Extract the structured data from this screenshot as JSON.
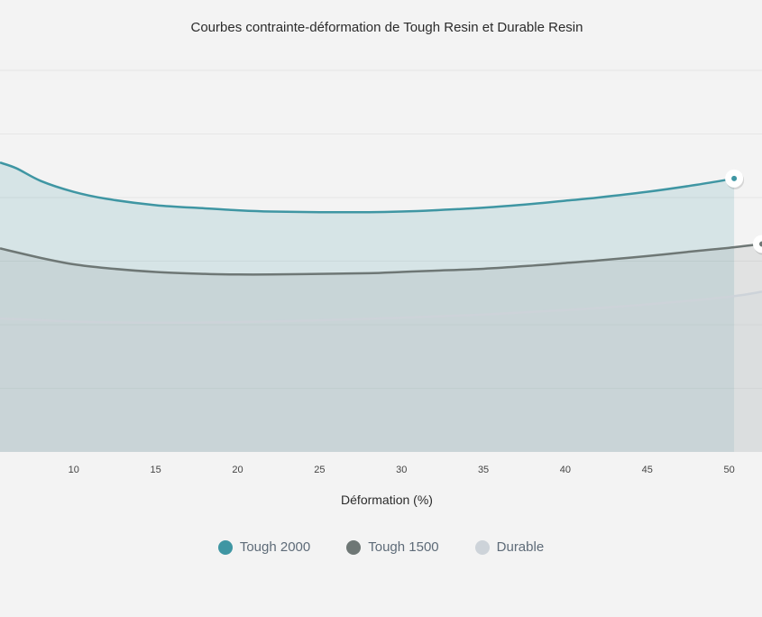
{
  "chart_data": {
    "type": "area",
    "title": "Courbes contrainte-déformation de Tough Resin et Durable Resin",
    "xlabel": "Déformation (%)",
    "ylabel": "",
    "x_ticks": [
      10,
      15,
      20,
      25,
      30,
      35,
      40,
      45,
      50
    ],
    "xlim": [
      5.5,
      52
    ],
    "ylim": [
      0,
      60
    ],
    "grid": true,
    "legend_position": "bottom",
    "series": [
      {
        "name": "Tough 2000",
        "color": "#3f96a3",
        "x": [
          5.5,
          6.5,
          8,
          10,
          12,
          15,
          18,
          20,
          22,
          25,
          28,
          30,
          32,
          35,
          38,
          40,
          42,
          45,
          48,
          50.3
        ],
        "values": [
          45.5,
          44.6,
          42.6,
          40.9,
          39.8,
          38.8,
          38.3,
          38.0,
          37.8,
          37.7,
          37.7,
          37.8,
          38.0,
          38.4,
          39.0,
          39.5,
          40.0,
          40.9,
          42.0,
          43.0
        ]
      },
      {
        "name": "Tough 1500",
        "color": "#6e7775",
        "x": [
          5.5,
          8,
          10,
          12,
          15,
          18,
          20,
          22,
          25,
          28,
          30,
          32,
          35,
          38,
          40,
          42,
          45,
          48,
          50,
          52
        ],
        "values": [
          32.0,
          30.5,
          29.5,
          28.9,
          28.3,
          28.0,
          27.9,
          27.9,
          28.0,
          28.1,
          28.3,
          28.5,
          28.8,
          29.3,
          29.7,
          30.1,
          30.8,
          31.6,
          32.1,
          32.7
        ]
      },
      {
        "name": "Durable",
        "color": "#cdd3d9",
        "x": [
          5.5,
          10,
          15,
          20,
          25,
          30,
          35,
          40,
          45,
          50,
          52
        ],
        "values": [
          21.0,
          20.5,
          20.3,
          20.4,
          20.7,
          21.1,
          21.6,
          22.3,
          23.2,
          24.4,
          25.2
        ]
      }
    ]
  }
}
